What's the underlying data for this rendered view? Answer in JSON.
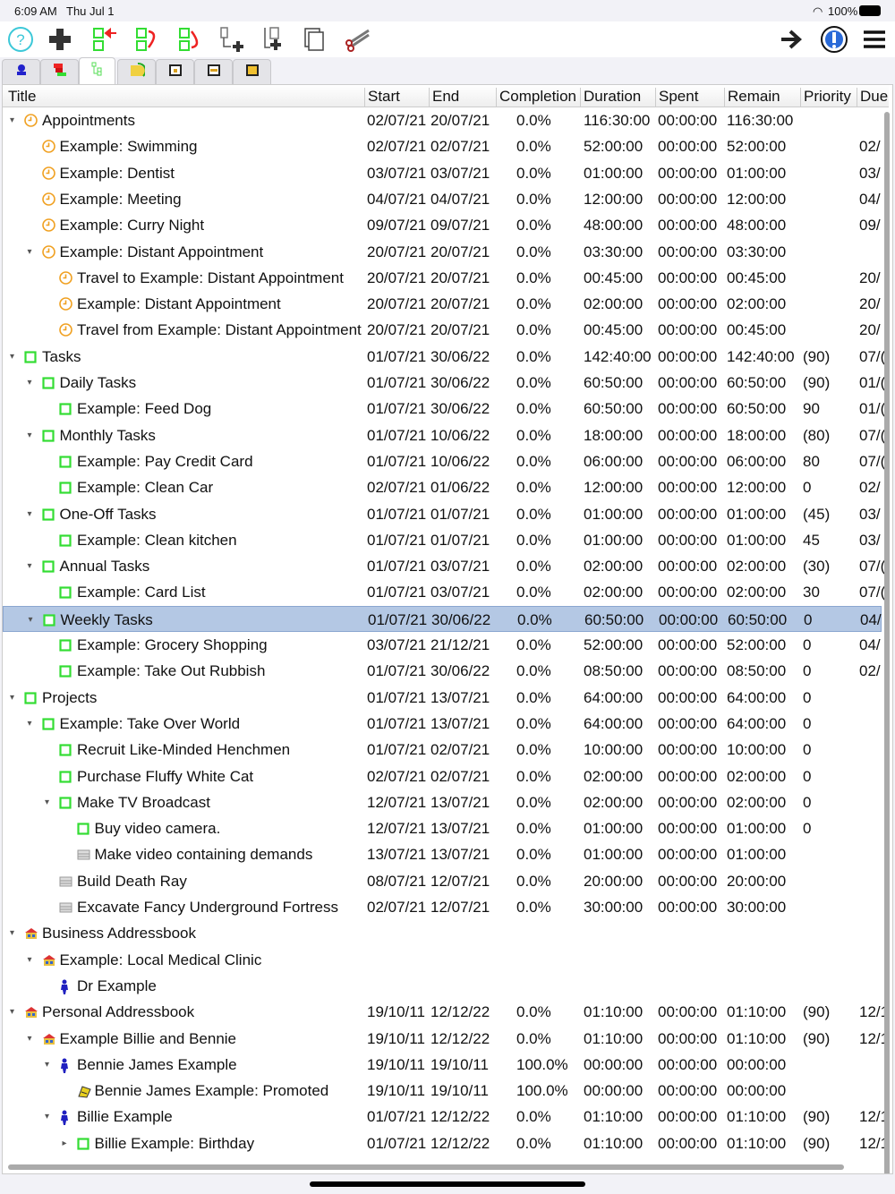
{
  "status": {
    "time": "6:09 AM",
    "date": "Thu Jul 1",
    "battery": "100%"
  },
  "toolbar": {
    "left": [
      "help-icon",
      "add-icon",
      "move-left-icon",
      "move-down-icon",
      "move-up-icon",
      "add-child-icon",
      "add-sibling-icon",
      "copy-icon",
      "cut-icon"
    ],
    "right": [
      "forward-arrow-icon",
      "info-icon",
      "menu-icon"
    ]
  },
  "tabs": [
    "contacts-tab",
    "gantt-tab",
    "tree-tab",
    "progress-tab",
    "calendar-day-tab",
    "calendar-week-tab",
    "calendar-month-tab"
  ],
  "active_tab": 2,
  "columns": [
    "Title",
    "Start",
    "End",
    "Completion",
    "Duration",
    "Spent",
    "Remain",
    "Priority",
    "Due"
  ],
  "colors": {
    "task": "#33dd33",
    "clock": "#f0a020",
    "selection": "#b4c8e4",
    "person": "#2020c0"
  },
  "rows": [
    [
      0,
      "open",
      "clock",
      "Appointments",
      "02/07/21",
      "20/07/21",
      "0.0%",
      "116:30:00",
      "00:00:00",
      "116:30:00",
      "",
      ""
    ],
    [
      1,
      "",
      "clock",
      "Example: Swimming",
      "02/07/21",
      "02/07/21",
      "0.0%",
      "52:00:00",
      "00:00:00",
      "52:00:00",
      "",
      "02/"
    ],
    [
      1,
      "",
      "clock",
      "Example: Dentist",
      "03/07/21",
      "03/07/21",
      "0.0%",
      "01:00:00",
      "00:00:00",
      "01:00:00",
      "",
      "03/"
    ],
    [
      1,
      "",
      "clock",
      "Example: Meeting",
      "04/07/21",
      "04/07/21",
      "0.0%",
      "12:00:00",
      "00:00:00",
      "12:00:00",
      "",
      "04/"
    ],
    [
      1,
      "",
      "clock",
      "Example: Curry Night",
      "09/07/21",
      "09/07/21",
      "0.0%",
      "48:00:00",
      "00:00:00",
      "48:00:00",
      "",
      "09/"
    ],
    [
      1,
      "open",
      "clock",
      "Example: Distant Appointment",
      "20/07/21",
      "20/07/21",
      "0.0%",
      "03:30:00",
      "00:00:00",
      "03:30:00",
      "",
      ""
    ],
    [
      2,
      "",
      "clock",
      "Travel to Example: Distant Appointment",
      "20/07/21",
      "20/07/21",
      "0.0%",
      "00:45:00",
      "00:00:00",
      "00:45:00",
      "",
      "20/"
    ],
    [
      2,
      "",
      "clock",
      "Example: Distant Appointment",
      "20/07/21",
      "20/07/21",
      "0.0%",
      "02:00:00",
      "00:00:00",
      "02:00:00",
      "",
      "20/"
    ],
    [
      2,
      "",
      "clock",
      "Travel from Example: Distant Appointment",
      "20/07/21",
      "20/07/21",
      "0.0%",
      "00:45:00",
      "00:00:00",
      "00:45:00",
      "",
      "20/"
    ],
    [
      0,
      "open",
      "task",
      "Tasks",
      "01/07/21",
      "30/06/22",
      "0.0%",
      "142:40:00",
      "00:00:00",
      "142:40:00",
      "(90)",
      "07/("
    ],
    [
      1,
      "open",
      "task",
      "Daily Tasks",
      "01/07/21",
      "30/06/22",
      "0.0%",
      "60:50:00",
      "00:00:00",
      "60:50:00",
      "(90)",
      "01/("
    ],
    [
      2,
      "",
      "task",
      "Example: Feed Dog",
      "01/07/21",
      "30/06/22",
      "0.0%",
      "60:50:00",
      "00:00:00",
      "60:50:00",
      "90",
      "01/("
    ],
    [
      1,
      "open",
      "task",
      "Monthly Tasks",
      "01/07/21",
      "10/06/22",
      "0.0%",
      "18:00:00",
      "00:00:00",
      "18:00:00",
      "(80)",
      "07/("
    ],
    [
      2,
      "",
      "task",
      "Example: Pay Credit Card",
      "01/07/21",
      "10/06/22",
      "0.0%",
      "06:00:00",
      "00:00:00",
      "06:00:00",
      "80",
      "07/("
    ],
    [
      2,
      "",
      "task",
      "Example: Clean Car",
      "02/07/21",
      "01/06/22",
      "0.0%",
      "12:00:00",
      "00:00:00",
      "12:00:00",
      "0",
      "02/"
    ],
    [
      1,
      "open",
      "task",
      "One-Off Tasks",
      "01/07/21",
      "01/07/21",
      "0.0%",
      "01:00:00",
      "00:00:00",
      "01:00:00",
      "(45)",
      "03/"
    ],
    [
      2,
      "",
      "task",
      "Example: Clean kitchen",
      "01/07/21",
      "01/07/21",
      "0.0%",
      "01:00:00",
      "00:00:00",
      "01:00:00",
      "45",
      "03/"
    ],
    [
      1,
      "open",
      "task",
      "Annual Tasks",
      "01/07/21",
      "03/07/21",
      "0.0%",
      "02:00:00",
      "00:00:00",
      "02:00:00",
      "(30)",
      "07/("
    ],
    [
      2,
      "",
      "task",
      "Example: Card List",
      "01/07/21",
      "03/07/21",
      "0.0%",
      "02:00:00",
      "00:00:00",
      "02:00:00",
      "30",
      "07/("
    ],
    [
      1,
      "open",
      "task",
      "Weekly Tasks",
      "01/07/21",
      "30/06/22",
      "0.0%",
      "60:50:00",
      "00:00:00",
      "60:50:00",
      "0",
      "04/"
    ],
    [
      2,
      "",
      "task",
      "Example: Grocery Shopping",
      "03/07/21",
      "21/12/21",
      "0.0%",
      "52:00:00",
      "00:00:00",
      "52:00:00",
      "0",
      "04/"
    ],
    [
      2,
      "",
      "task",
      "Example: Take Out Rubbish",
      "01/07/21",
      "30/06/22",
      "0.0%",
      "08:50:00",
      "00:00:00",
      "08:50:00",
      "0",
      "02/"
    ],
    [
      0,
      "open",
      "task",
      "Projects",
      "01/07/21",
      "13/07/21",
      "0.0%",
      "64:00:00",
      "00:00:00",
      "64:00:00",
      "0",
      ""
    ],
    [
      1,
      "open",
      "task",
      "Example: Take Over World",
      "01/07/21",
      "13/07/21",
      "0.0%",
      "64:00:00",
      "00:00:00",
      "64:00:00",
      "0",
      ""
    ],
    [
      2,
      "",
      "task",
      "Recruit Like-Minded Henchmen",
      "01/07/21",
      "02/07/21",
      "0.0%",
      "10:00:00",
      "00:00:00",
      "10:00:00",
      "0",
      ""
    ],
    [
      2,
      "",
      "task",
      "Purchase Fluffy White Cat",
      "02/07/21",
      "02/07/21",
      "0.0%",
      "02:00:00",
      "00:00:00",
      "02:00:00",
      "0",
      ""
    ],
    [
      2,
      "open",
      "task",
      "Make TV Broadcast",
      "12/07/21",
      "13/07/21",
      "0.0%",
      "02:00:00",
      "00:00:00",
      "02:00:00",
      "0",
      ""
    ],
    [
      3,
      "",
      "task",
      "Buy video camera.",
      "12/07/21",
      "13/07/21",
      "0.0%",
      "01:00:00",
      "00:00:00",
      "01:00:00",
      "0",
      ""
    ],
    [
      3,
      "",
      "note",
      "Make video containing demands",
      "13/07/21",
      "13/07/21",
      "0.0%",
      "01:00:00",
      "00:00:00",
      "01:00:00",
      "",
      ""
    ],
    [
      2,
      "",
      "note",
      "Build Death Ray",
      "08/07/21",
      "12/07/21",
      "0.0%",
      "20:00:00",
      "00:00:00",
      "20:00:00",
      "",
      ""
    ],
    [
      2,
      "",
      "note",
      "Excavate Fancy Underground Fortress",
      "02/07/21",
      "12/07/21",
      "0.0%",
      "30:00:00",
      "00:00:00",
      "30:00:00",
      "",
      ""
    ],
    [
      0,
      "open",
      "house",
      "Business Addressbook",
      "",
      "",
      "",
      "",
      "",
      "",
      "",
      ""
    ],
    [
      1,
      "open",
      "house",
      "Example: Local Medical Clinic",
      "",
      "",
      "",
      "",
      "",
      "",
      "",
      ""
    ],
    [
      2,
      "",
      "person",
      "Dr Example",
      "",
      "",
      "",
      "",
      "",
      "",
      "",
      ""
    ],
    [
      0,
      "open",
      "house",
      "Personal Addressbook",
      "19/10/11",
      "12/12/22",
      "0.0%",
      "01:10:00",
      "00:00:00",
      "01:10:00",
      "(90)",
      "12/1"
    ],
    [
      1,
      "open",
      "house",
      "Example Billie and Bennie",
      "19/10/11",
      "12/12/22",
      "0.0%",
      "01:10:00",
      "00:00:00",
      "01:10:00",
      "(90)",
      "12/1"
    ],
    [
      2,
      "open",
      "person",
      "Bennie James Example",
      "19/10/11",
      "19/10/11",
      "100.0%",
      "00:00:00",
      "00:00:00",
      "00:00:00",
      "",
      ""
    ],
    [
      3,
      "",
      "promoted",
      "Bennie James Example: Promoted",
      "19/10/11",
      "19/10/11",
      "100.0%",
      "00:00:00",
      "00:00:00",
      "00:00:00",
      "",
      ""
    ],
    [
      2,
      "open",
      "person",
      "Billie Example",
      "01/07/21",
      "12/12/22",
      "0.0%",
      "01:10:00",
      "00:00:00",
      "01:10:00",
      "(90)",
      "12/1"
    ],
    [
      3,
      "closed",
      "task",
      "Billie Example: Birthday",
      "01/07/21",
      "12/12/22",
      "0.0%",
      "01:10:00",
      "00:00:00",
      "01:10:00",
      "(90)",
      "12/1"
    ]
  ],
  "selected_row": 19
}
